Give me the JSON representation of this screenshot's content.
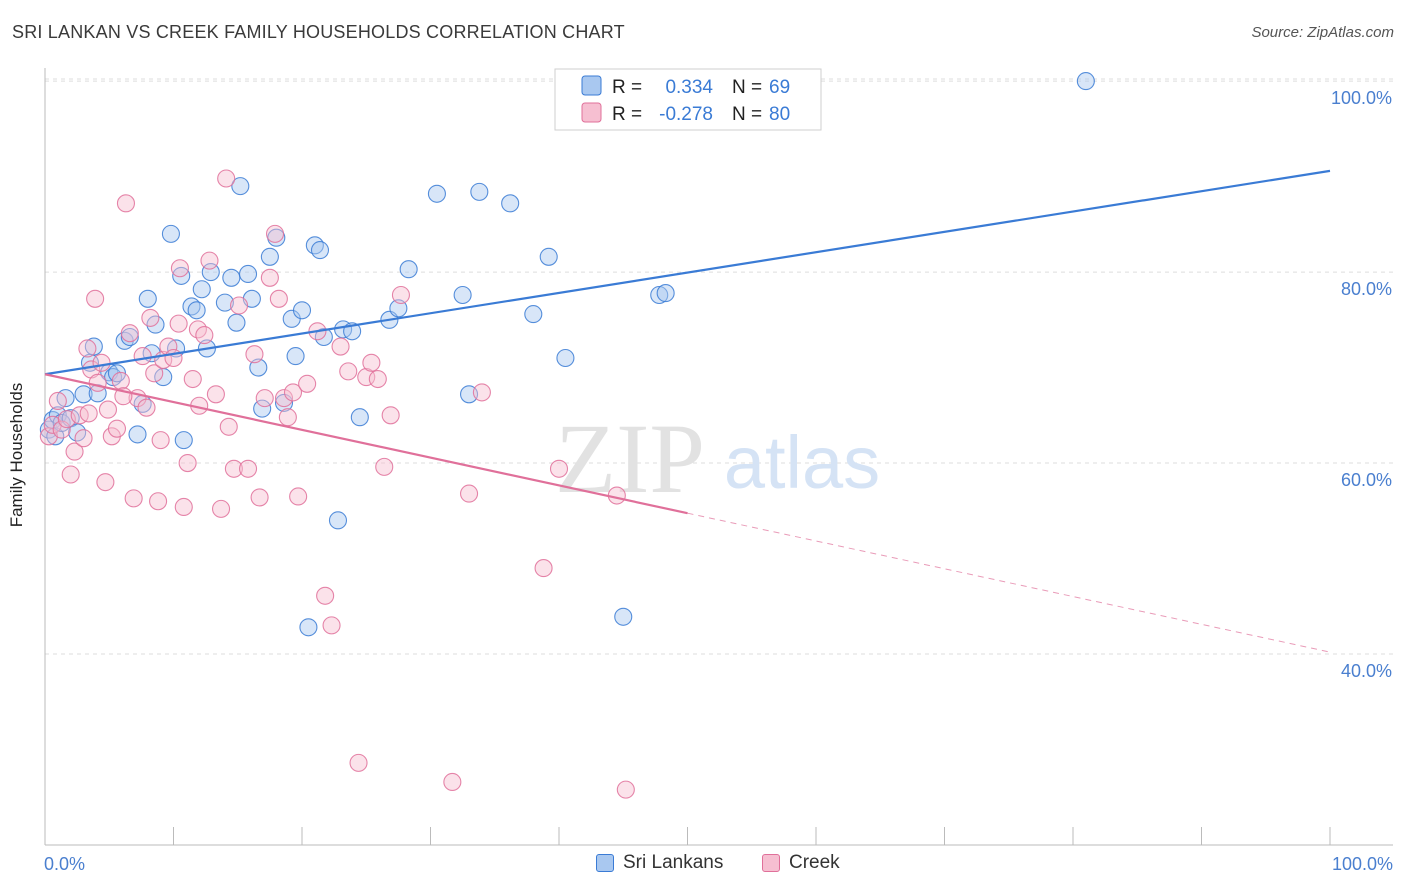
{
  "title": "SRI LANKAN VS CREEK FAMILY HOUSEHOLDS CORRELATION CHART",
  "source": "Source: ZipAtlas.com",
  "watermark": {
    "zip": "ZIP",
    "atlas": "atlas"
  },
  "colors": {
    "blue": "#3a7bd5",
    "blue_fill": "#a9c8f0",
    "pink": "#e0709a",
    "pink_fill": "#f6bfd1",
    "axis_label_blue": "#4a7fcf",
    "grid": "#dddddd"
  },
  "legend": {
    "rows": [
      {
        "r_label": "R =",
        "r_value": "0.334",
        "n_label": "N =",
        "n_value": "69"
      },
      {
        "r_label": "R =",
        "r_value": "-0.278",
        "n_label": "N =",
        "n_value": "80"
      }
    ]
  },
  "bottom_legend": [
    "Sri Lankans",
    "Creek"
  ],
  "chart_data": {
    "type": "scatter",
    "title": "SRI LANKAN VS CREEK FAMILY HOUSEHOLDS CORRELATION CHART",
    "xlabel": "",
    "ylabel": "Family Households",
    "xlim": [
      0,
      100
    ],
    "ylim": [
      20,
      102
    ],
    "x_tick_labels": [
      "0.0%",
      "100.0%"
    ],
    "y_ticks": [
      40,
      60,
      80,
      100
    ],
    "y_tick_labels": [
      "40.0%",
      "60.0%",
      "80.0%",
      "100.0%"
    ],
    "grid": true,
    "legend_position": "top-center",
    "series": [
      {
        "name": "Sri Lankans",
        "stats": {
          "R": 0.334,
          "N": 69
        },
        "trend": {
          "x0": 0,
          "y0": 69.3,
          "x1": 100,
          "y1": 90.6,
          "dash_from": null
        },
        "points": [
          [
            0.3,
            63.5
          ],
          [
            0.6,
            64.5
          ],
          [
            0.8,
            62.8
          ],
          [
            1.0,
            65.0
          ],
          [
            1.3,
            64.2
          ],
          [
            1.6,
            66.8
          ],
          [
            2.0,
            64.7
          ],
          [
            2.5,
            63.2
          ],
          [
            3.0,
            67.2
          ],
          [
            3.5,
            70.5
          ],
          [
            3.8,
            72.2
          ],
          [
            4.1,
            67.3
          ],
          [
            5.0,
            69.5
          ],
          [
            5.3,
            69.0
          ],
          [
            5.6,
            69.4
          ],
          [
            6.2,
            72.8
          ],
          [
            6.6,
            73.2
          ],
          [
            7.2,
            63.0
          ],
          [
            7.6,
            66.2
          ],
          [
            8.0,
            77.2
          ],
          [
            8.3,
            71.5
          ],
          [
            8.6,
            74.5
          ],
          [
            9.2,
            69.0
          ],
          [
            9.8,
            84.0
          ],
          [
            10.2,
            72.0
          ],
          [
            10.6,
            79.6
          ],
          [
            10.8,
            62.4
          ],
          [
            11.4,
            76.4
          ],
          [
            11.8,
            76.0
          ],
          [
            12.2,
            78.2
          ],
          [
            12.6,
            72.0
          ],
          [
            12.9,
            80.0
          ],
          [
            14.0,
            76.8
          ],
          [
            14.5,
            79.4
          ],
          [
            14.9,
            74.7
          ],
          [
            15.2,
            89.0
          ],
          [
            15.8,
            79.8
          ],
          [
            16.1,
            77.2
          ],
          [
            16.6,
            70.0
          ],
          [
            16.9,
            65.7
          ],
          [
            17.5,
            81.6
          ],
          [
            18.0,
            83.6
          ],
          [
            18.6,
            66.3
          ],
          [
            19.2,
            75.1
          ],
          [
            19.5,
            71.2
          ],
          [
            20.0,
            76.0
          ],
          [
            20.5,
            42.8
          ],
          [
            21.0,
            82.8
          ],
          [
            21.4,
            82.3
          ],
          [
            21.7,
            73.2
          ],
          [
            22.8,
            54.0
          ],
          [
            23.2,
            74.0
          ],
          [
            23.9,
            73.8
          ],
          [
            24.5,
            64.8
          ],
          [
            26.8,
            75.0
          ],
          [
            27.5,
            76.2
          ],
          [
            28.3,
            80.3
          ],
          [
            30.5,
            88.2
          ],
          [
            32.5,
            77.6
          ],
          [
            33.0,
            67.2
          ],
          [
            33.8,
            88.4
          ],
          [
            36.2,
            87.2
          ],
          [
            38.0,
            75.6
          ],
          [
            39.2,
            81.6
          ],
          [
            40.5,
            71.0
          ],
          [
            45.0,
            43.9
          ],
          [
            47.8,
            77.6
          ],
          [
            48.3,
            77.8
          ],
          [
            81.0,
            100.0
          ]
        ]
      },
      {
        "name": "Creek",
        "stats": {
          "R": -0.278,
          "N": 80
        },
        "trend": {
          "x0": 0,
          "y0": 69.3,
          "x1": 100,
          "y1": 40.2,
          "dash_from": 50
        },
        "points": [
          [
            0.3,
            62.8
          ],
          [
            0.6,
            64.0
          ],
          [
            1.0,
            66.5
          ],
          [
            1.3,
            63.5
          ],
          [
            1.7,
            64.6
          ],
          [
            2.0,
            58.8
          ],
          [
            2.3,
            61.2
          ],
          [
            2.7,
            65.0
          ],
          [
            3.0,
            62.6
          ],
          [
            3.3,
            72.0
          ],
          [
            3.6,
            69.8
          ],
          [
            3.9,
            77.2
          ],
          [
            4.1,
            68.4
          ],
          [
            4.4,
            70.5
          ],
          [
            4.7,
            58.0
          ],
          [
            4.9,
            65.6
          ],
          [
            5.2,
            62.8
          ],
          [
            5.6,
            63.6
          ],
          [
            5.9,
            68.6
          ],
          [
            6.3,
            87.2
          ],
          [
            6.6,
            73.6
          ],
          [
            6.9,
            56.3
          ],
          [
            7.2,
            66.8
          ],
          [
            7.6,
            71.2
          ],
          [
            7.9,
            65.8
          ],
          [
            8.2,
            75.2
          ],
          [
            8.5,
            69.4
          ],
          [
            8.8,
            56.0
          ],
          [
            9.2,
            70.8
          ],
          [
            9.6,
            72.2
          ],
          [
            10.0,
            71.0
          ],
          [
            10.4,
            74.6
          ],
          [
            10.8,
            55.4
          ],
          [
            11.1,
            60.0
          ],
          [
            11.5,
            68.8
          ],
          [
            11.9,
            74.0
          ],
          [
            12.4,
            73.4
          ],
          [
            12.8,
            81.2
          ],
          [
            13.3,
            67.2
          ],
          [
            13.7,
            55.2
          ],
          [
            14.1,
            89.8
          ],
          [
            14.3,
            63.8
          ],
          [
            14.7,
            59.4
          ],
          [
            15.1,
            76.5
          ],
          [
            15.8,
            59.4
          ],
          [
            16.3,
            71.4
          ],
          [
            16.7,
            56.4
          ],
          [
            17.1,
            66.8
          ],
          [
            17.5,
            79.4
          ],
          [
            17.9,
            84.0
          ],
          [
            18.2,
            77.2
          ],
          [
            18.6,
            66.8
          ],
          [
            18.9,
            64.8
          ],
          [
            19.3,
            67.4
          ],
          [
            19.7,
            56.5
          ],
          [
            20.4,
            68.3
          ],
          [
            21.2,
            73.8
          ],
          [
            21.8,
            46.1
          ],
          [
            22.3,
            43.0
          ],
          [
            23.0,
            72.2
          ],
          [
            23.6,
            69.6
          ],
          [
            24.4,
            28.6
          ],
          [
            25.0,
            69.0
          ],
          [
            25.4,
            70.5
          ],
          [
            25.9,
            68.8
          ],
          [
            26.4,
            59.6
          ],
          [
            26.9,
            65.0
          ],
          [
            27.7,
            77.6
          ],
          [
            31.7,
            26.6
          ],
          [
            33.0,
            56.8
          ],
          [
            34.0,
            67.4
          ],
          [
            38.8,
            49.0
          ],
          [
            40.0,
            59.4
          ],
          [
            44.5,
            56.6
          ],
          [
            45.2,
            25.8
          ],
          [
            10.5,
            80.4
          ],
          [
            3.4,
            65.2
          ],
          [
            6.1,
            67.0
          ],
          [
            9.0,
            62.4
          ],
          [
            12.0,
            66.0
          ]
        ]
      }
    ]
  }
}
